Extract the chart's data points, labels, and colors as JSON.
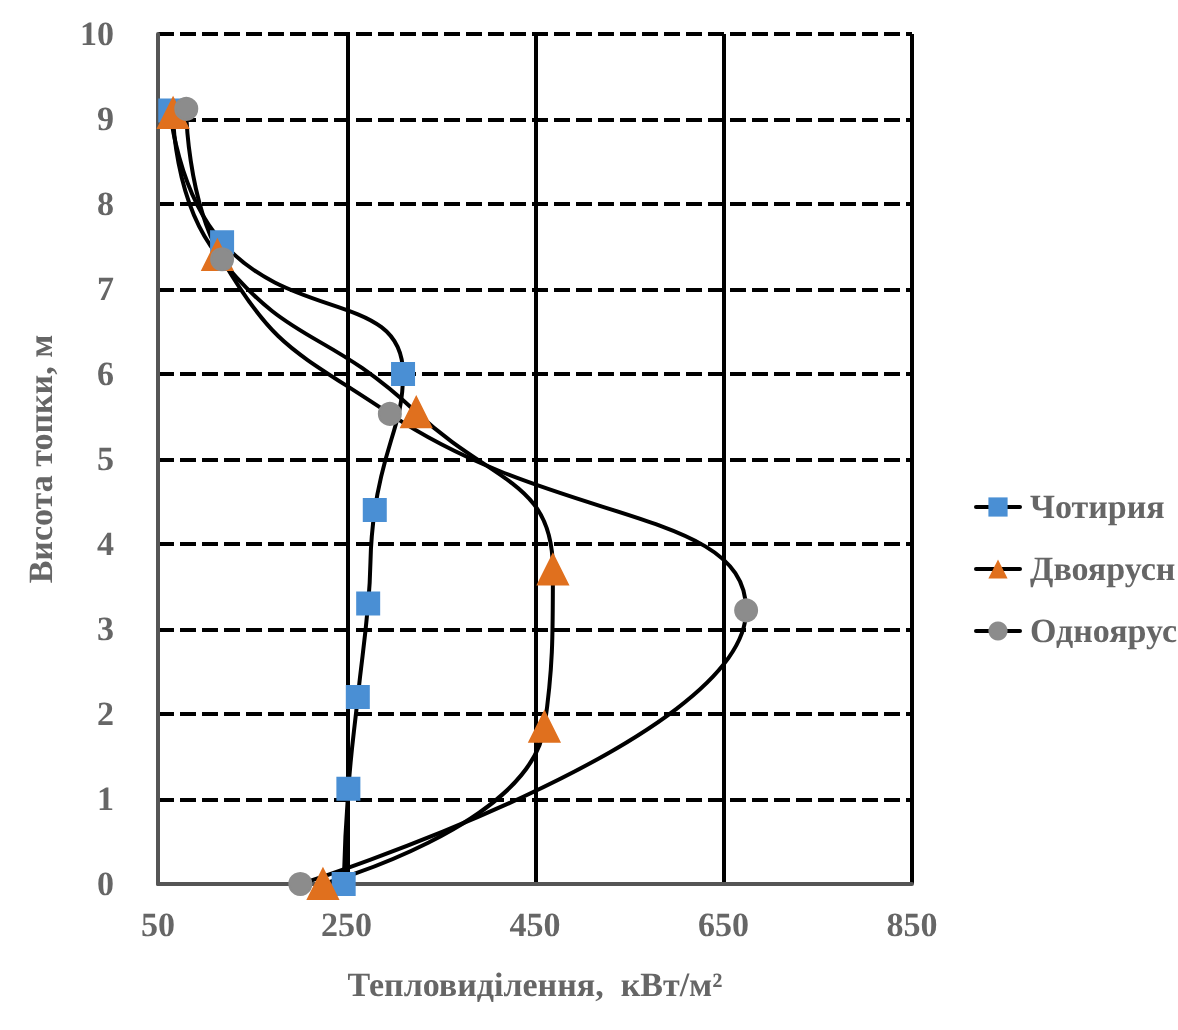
{
  "chart_data": {
    "type": "line",
    "xlabel": "Тепловиділення,  кВт/м²",
    "ylabel": "Висота топки, м",
    "xlim": [
      50,
      850
    ],
    "xticks": [
      50,
      250,
      450,
      650,
      850
    ],
    "ylim": [
      0,
      10
    ],
    "yticks": [
      0,
      1,
      2,
      3,
      4,
      5,
      6,
      7,
      8,
      9,
      10
    ],
    "grid": true,
    "legend": "right",
    "series": [
      {
        "name": "Чотирия",
        "color": "#4a8fd4",
        "marker": "square",
        "x": [
          247,
          252,
          262,
          273,
          280,
          310,
          118,
          63
        ],
        "values": [
          0,
          1.12,
          2.2,
          3.3,
          4.4,
          6.0,
          7.55,
          9.1
        ]
      },
      {
        "name": "Двоярусн",
        "color": "#e0701e",
        "marker": "triangle",
        "x": [
          225,
          460,
          469,
          324,
          113,
          66
        ],
        "values": [
          0,
          1.85,
          3.7,
          5.55,
          7.4,
          9.07
        ]
      },
      {
        "name": "Одноярус",
        "color": "#8c8c8c",
        "marker": "circle",
        "x": [
          201,
          674,
          296,
          118,
          80
        ],
        "values": [
          0,
          3.22,
          5.53,
          7.35,
          9.12
        ]
      }
    ]
  }
}
